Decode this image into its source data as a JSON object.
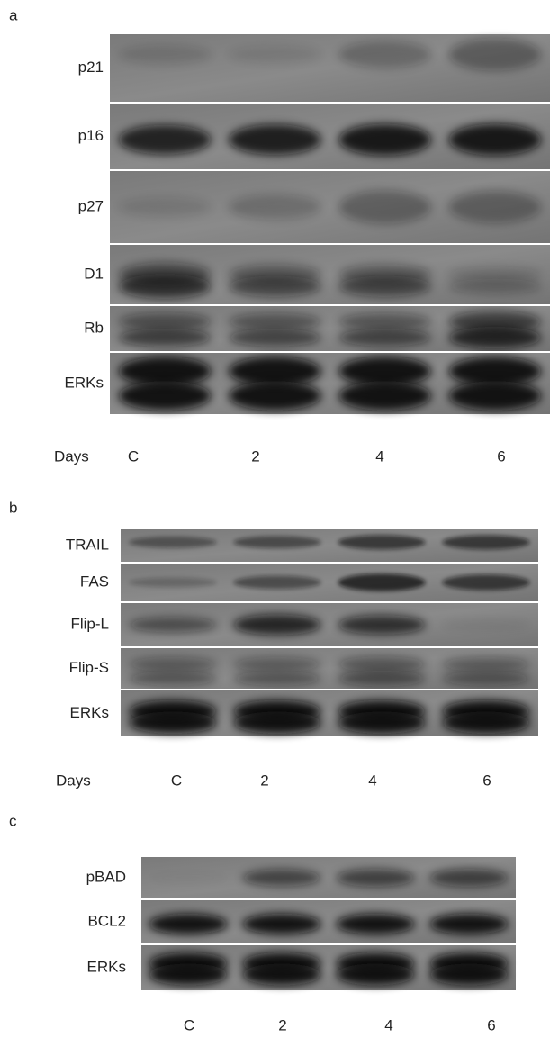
{
  "panels": [
    {
      "label": "a",
      "rows": [
        "p21",
        "p16",
        "p27",
        "D1",
        "Rb",
        "ERKs"
      ],
      "axis_label": "Days",
      "lanes": [
        "C",
        "2",
        "4",
        "6"
      ]
    },
    {
      "label": "b",
      "rows": [
        "TRAIL",
        "FAS",
        "Flip-L",
        "Flip-S",
        "ERKs"
      ],
      "axis_label": "Days",
      "lanes": [
        "C",
        "2",
        "4",
        "6"
      ]
    },
    {
      "label": "c",
      "rows": [
        "pBAD",
        "BCL2",
        "ERKs"
      ],
      "lanes": [
        "C",
        "2",
        "4",
        "6"
      ]
    }
  ]
}
